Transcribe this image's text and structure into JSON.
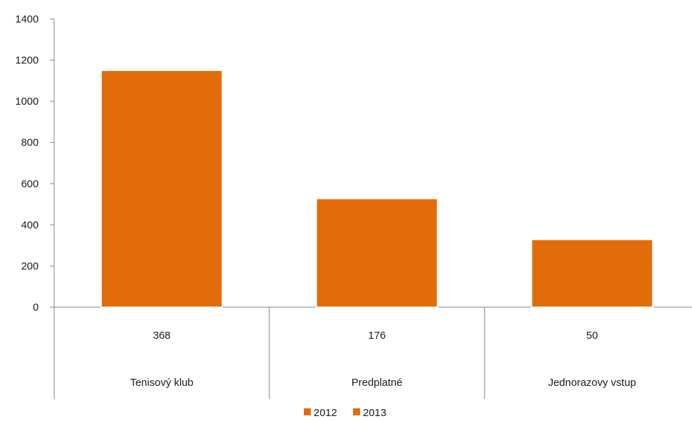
{
  "chart_data": {
    "type": "bar",
    "title": "",
    "xlabel": "",
    "ylabel": "",
    "ylim": [
      0,
      1400
    ],
    "yticks": [
      0,
      200,
      400,
      600,
      800,
      1000,
      1200,
      1400
    ],
    "categories": [
      {
        "sub": "368",
        "label": "Tenisový klub"
      },
      {
        "sub": "176",
        "label": "Predplatné"
      },
      {
        "sub": "50",
        "label": "Jednorazovy vstup"
      }
    ],
    "series": [
      {
        "name": "2012",
        "values": [
          0,
          0,
          0
        ],
        "color": "#e36c0a"
      },
      {
        "name": "2013",
        "values": [
          1150,
          527,
          328
        ],
        "color": "#e36c0a"
      }
    ],
    "grid": false,
    "legend_position": "bottom",
    "colors": {
      "bar": "#e36c0a",
      "axis": "#808080"
    }
  }
}
